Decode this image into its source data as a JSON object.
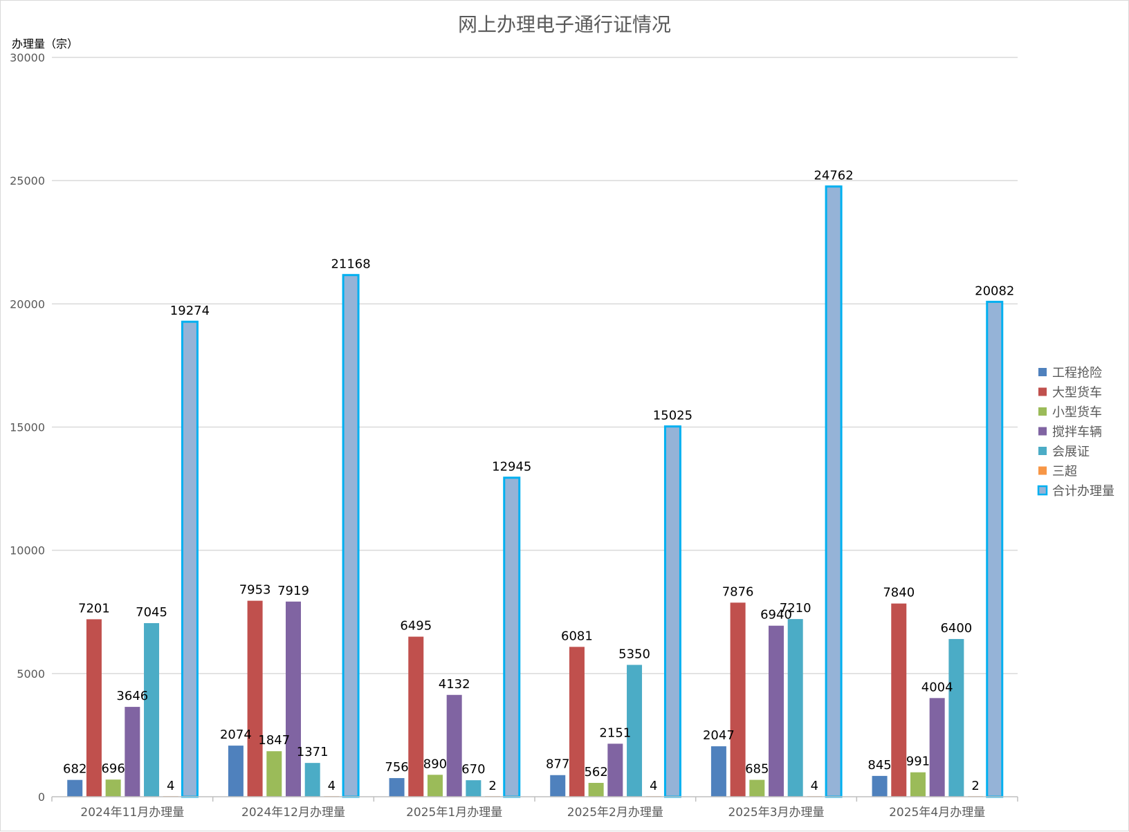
{
  "chart_data": {
    "type": "bar",
    "title": "网上办理电子通行证情况",
    "ylabel": "办理量（宗）",
    "xlabel": "",
    "ylim": [
      0,
      30000
    ],
    "yticks": [
      0,
      5000,
      10000,
      15000,
      20000,
      25000,
      30000
    ],
    "grid": true,
    "legend_position": "right",
    "categories": [
      "2024年11月办理量",
      "2024年12月办理量",
      "2025年1月办理量",
      "2025年2月办理量",
      "2025年3月办理量",
      "2025年4月办理量"
    ],
    "series": [
      {
        "name": "工程抢险",
        "color": "#4F81BD",
        "values": [
          682,
          2074,
          756,
          877,
          2047,
          845
        ],
        "labels": [
          "682",
          "2074",
          "756",
          "877",
          "2047",
          "845"
        ]
      },
      {
        "name": "大型货车",
        "color": "#C0504D",
        "values": [
          7201,
          7953,
          6495,
          6081,
          7876,
          7840
        ],
        "labels": [
          "7201",
          "7953",
          "6495",
          "6081",
          "7876",
          "7840"
        ]
      },
      {
        "name": "小型货车",
        "color": "#9BBB59",
        "values": [
          696,
          1847,
          890,
          562,
          685,
          991
        ],
        "labels": [
          "696",
          "1847",
          "890",
          "562",
          "685",
          "991"
        ]
      },
      {
        "name": "搅拌车辆",
        "color": "#8064A2",
        "values": [
          3646,
          7919,
          4132,
          2151,
          6940,
          4004
        ],
        "labels": [
          "3646",
          "7919",
          "4132",
          "2151",
          "6940",
          "4004"
        ]
      },
      {
        "name": "会展证",
        "color": "#4BACC6",
        "values": [
          7045,
          1371,
          670,
          5350,
          7210,
          6400
        ],
        "labels": [
          "7045",
          "1371",
          "670",
          "5350",
          "7210",
          "6400"
        ]
      },
      {
        "name": "三超",
        "color": "#F79646",
        "values": [
          4,
          4,
          2,
          4,
          4,
          2
        ],
        "labels": [
          "4",
          "4",
          "2",
          "4",
          "4",
          "2"
        ]
      },
      {
        "name": "合计办理量",
        "color": "#95B3D7",
        "border_color": "#00B0F0",
        "values": [
          19274,
          21168,
          12945,
          15025,
          24762,
          20082
        ],
        "labels": [
          "19274",
          "21168",
          "12945",
          "15025",
          "24762",
          "20082"
        ]
      }
    ]
  }
}
